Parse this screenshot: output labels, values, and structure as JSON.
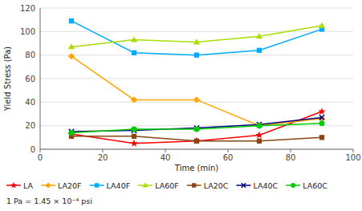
{
  "chart_data": {
    "type": "line",
    "xlabel": "Time (min)",
    "ylabel": "Yield Stress (Pa)",
    "annotation": "1 Pa = 1.45 × 10⁻⁴ psi",
    "x": [
      10,
      30,
      50,
      70,
      90
    ],
    "xlim": [
      0,
      100
    ],
    "ylim": [
      0,
      120
    ],
    "xticks": [
      0,
      20,
      40,
      60,
      80,
      100
    ],
    "yticks": [
      0,
      20,
      40,
      60,
      80,
      100,
      120
    ],
    "grid": true,
    "legend": "bottom",
    "series": [
      {
        "name": "LA",
        "color": "#FF0000",
        "marker": "star",
        "values": [
          13,
          5,
          7,
          12,
          32
        ]
      },
      {
        "name": "LA20F",
        "color": "#FFA500",
        "marker": "diamond",
        "values": [
          79,
          42,
          42,
          20,
          26
        ]
      },
      {
        "name": "LA40F",
        "color": "#00AAFF",
        "marker": "square",
        "values": [
          109,
          82,
          80,
          84,
          102
        ]
      },
      {
        "name": "LA60F",
        "color": "#AADD00",
        "marker": "triangle",
        "values": [
          87,
          93,
          91,
          96,
          105
        ]
      },
      {
        "name": "LA20C",
        "color": "#8B4513",
        "marker": "square",
        "values": [
          11,
          11,
          7,
          7,
          10
        ]
      },
      {
        "name": "LA40C",
        "color": "#000080",
        "marker": "x",
        "values": [
          15,
          16,
          18,
          21,
          27
        ]
      },
      {
        "name": "LA60C",
        "color": "#00CC00",
        "marker": "circle",
        "values": [
          14,
          17,
          17,
          20,
          22
        ]
      }
    ]
  }
}
